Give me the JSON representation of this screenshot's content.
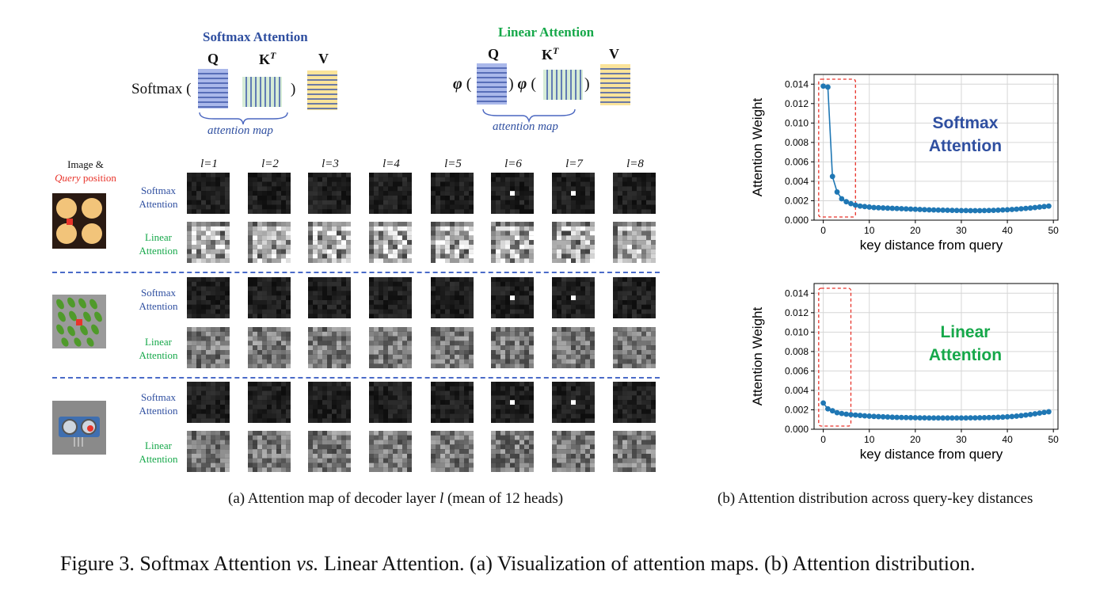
{
  "softmax_block": {
    "title": "Softmax Attention",
    "func": "Softmax",
    "open_paren": "(",
    "close_paren": ")",
    "q": "Q",
    "k": "K",
    "k_sup": "T",
    "v": "V",
    "brace_label": "attention map"
  },
  "linear_block": {
    "title": "Linear Attention",
    "phi": "φ",
    "open_paren": "(",
    "close_paren": ")",
    "q": "Q",
    "k": "K",
    "k_sup": "T",
    "v": "V",
    "brace_label": "attention map"
  },
  "grid": {
    "image_label_line1": "Image &",
    "image_label_query": "Query",
    "image_label_rest": " position",
    "layers": [
      "l=1",
      "l=2",
      "l=3",
      "l=4",
      "l=5",
      "l=6",
      "l=7",
      "l=8"
    ],
    "softmax_label": [
      "Softmax",
      "Attention"
    ],
    "linear_label": [
      "Linear",
      "Attention"
    ]
  },
  "captions": {
    "a_prefix": "(a) Attention map of decoder layer ",
    "a_var": "l",
    "a_suffix": " (mean of 12 heads)",
    "b": "(b) Attention distribution across query-key distances",
    "figure_prefix": "Figure 3. Softmax Attention ",
    "figure_vs": "vs.",
    "figure_suffix": " Linear Attention. (a) Visualization of attention maps. (b) Attention distribution."
  },
  "colors": {
    "softmax_blue": "#2f4fa0",
    "linear_green": "#16a84a",
    "series": "#1f77b4",
    "highlight": "#e8332a"
  },
  "chart_data": [
    {
      "type": "line",
      "annotation": [
        "Softmax",
        "Attention"
      ],
      "xlabel": "key distance from query",
      "ylabel": "Attention Weight",
      "xlim": [
        -2,
        51
      ],
      "ylim": [
        0,
        0.015
      ],
      "xticks": [
        0,
        10,
        20,
        30,
        40,
        50
      ],
      "yticks": [
        "0.000",
        "0.002",
        "0.004",
        "0.006",
        "0.008",
        "0.010",
        "0.012",
        "0.014"
      ],
      "grid": true,
      "highlight_box_x": [
        -1,
        7
      ],
      "x": [
        0,
        1,
        2,
        3,
        4,
        5,
        6,
        7,
        8,
        9,
        10,
        11,
        12,
        13,
        14,
        15,
        16,
        17,
        18,
        19,
        20,
        21,
        22,
        23,
        24,
        25,
        26,
        27,
        28,
        29,
        30,
        31,
        32,
        33,
        34,
        35,
        36,
        37,
        38,
        39,
        40,
        41,
        42,
        43,
        44,
        45,
        46,
        47,
        48,
        49
      ],
      "values": [
        0.0138,
        0.0137,
        0.0045,
        0.0029,
        0.0022,
        0.0019,
        0.0017,
        0.00155,
        0.00145,
        0.0014,
        0.00135,
        0.0013,
        0.00128,
        0.00126,
        0.00124,
        0.00122,
        0.0012,
        0.00118,
        0.00116,
        0.00114,
        0.00112,
        0.0011,
        0.00108,
        0.00106,
        0.00105,
        0.00104,
        0.00103,
        0.00102,
        0.00101,
        0.001,
        0.00099,
        0.00099,
        0.00098,
        0.00098,
        0.00098,
        0.00099,
        0.001,
        0.00101,
        0.00103,
        0.00105,
        0.00107,
        0.0011,
        0.00113,
        0.00117,
        0.00121,
        0.00125,
        0.0013,
        0.00135,
        0.0014,
        0.00145
      ]
    },
    {
      "type": "line",
      "annotation": [
        "Linear",
        "Attention"
      ],
      "xlabel": "key distance from query",
      "ylabel": "Attention Weight",
      "xlim": [
        -2,
        51
      ],
      "ylim": [
        0,
        0.015
      ],
      "xticks": [
        0,
        10,
        20,
        30,
        40,
        50
      ],
      "yticks": [
        "0.000",
        "0.002",
        "0.004",
        "0.006",
        "0.008",
        "0.010",
        "0.012",
        "0.014"
      ],
      "grid": true,
      "highlight_box_x": [
        -1,
        6
      ],
      "x": [
        0,
        1,
        2,
        3,
        4,
        5,
        6,
        7,
        8,
        9,
        10,
        11,
        12,
        13,
        14,
        15,
        16,
        17,
        18,
        19,
        20,
        21,
        22,
        23,
        24,
        25,
        26,
        27,
        28,
        29,
        30,
        31,
        32,
        33,
        34,
        35,
        36,
        37,
        38,
        39,
        40,
        41,
        42,
        43,
        44,
        45,
        46,
        47,
        48,
        49
      ],
      "values": [
        0.0027,
        0.0021,
        0.0019,
        0.0017,
        0.00162,
        0.00155,
        0.0015,
        0.00146,
        0.00142,
        0.00138,
        0.00135,
        0.00132,
        0.0013,
        0.00128,
        0.00126,
        0.00124,
        0.00122,
        0.00121,
        0.0012,
        0.00119,
        0.00118,
        0.00117,
        0.00117,
        0.00116,
        0.00116,
        0.00116,
        0.00116,
        0.00116,
        0.00116,
        0.00116,
        0.00116,
        0.00116,
        0.00117,
        0.00117,
        0.00118,
        0.00119,
        0.0012,
        0.00121,
        0.00123,
        0.00125,
        0.00128,
        0.00131,
        0.00135,
        0.0014,
        0.00146,
        0.00152,
        0.00159,
        0.00166,
        0.00173,
        0.0018
      ]
    }
  ]
}
